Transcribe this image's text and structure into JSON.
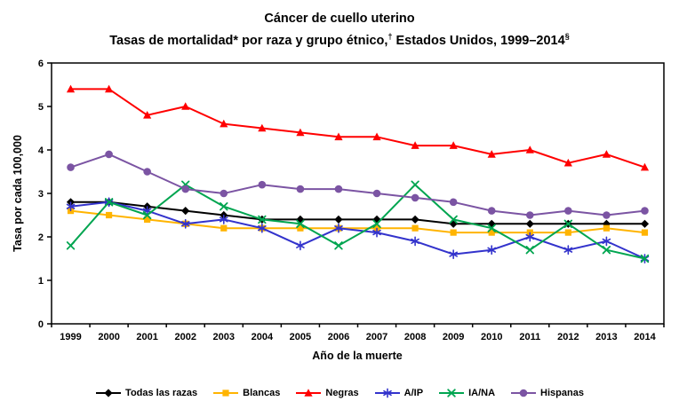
{
  "title": {
    "line1": "Cáncer de cuello uterino",
    "line2_part1": "Tasas de mortalidad* por raza y grupo étnico,",
    "line2_sup1": "†",
    "line2_part2": " Estados Unidos, 1999–2014",
    "line2_sup2": "§"
  },
  "chart_data": {
    "type": "line",
    "x": [
      1999,
      2000,
      2001,
      2002,
      2003,
      2004,
      2005,
      2006,
      2007,
      2008,
      2009,
      2010,
      2011,
      2012,
      2013,
      2014
    ],
    "xlabel": "Año de la muerte",
    "ylabel": "Tasa por cada 100,000",
    "ylim": [
      0,
      6
    ],
    "ytick_interval": 1,
    "grid": false,
    "legend_position": "bottom",
    "series": [
      {
        "name": "Todas las razas",
        "color": "#000000",
        "marker": "diamond",
        "values": [
          2.8,
          2.8,
          2.7,
          2.6,
          2.5,
          2.4,
          2.4,
          2.4,
          2.4,
          2.4,
          2.3,
          2.3,
          2.3,
          2.3,
          2.3,
          2.3
        ]
      },
      {
        "name": "Blancas",
        "color": "#FFB400",
        "marker": "square",
        "values": [
          2.6,
          2.5,
          2.4,
          2.3,
          2.2,
          2.2,
          2.2,
          2.2,
          2.2,
          2.2,
          2.1,
          2.1,
          2.1,
          2.1,
          2.2,
          2.1
        ]
      },
      {
        "name": "Negras",
        "color": "#FF0000",
        "marker": "triangle",
        "values": [
          5.4,
          5.4,
          4.8,
          5.0,
          4.6,
          4.5,
          4.4,
          4.3,
          4.3,
          4.1,
          4.1,
          3.9,
          4.0,
          3.7,
          3.9,
          3.6
        ]
      },
      {
        "name": "A/IP",
        "color": "#3333CC",
        "marker": "asterisk",
        "values": [
          2.7,
          2.8,
          2.6,
          2.3,
          2.4,
          2.2,
          1.8,
          2.2,
          2.1,
          1.9,
          1.6,
          1.7,
          2.0,
          1.7,
          1.9,
          1.5
        ]
      },
      {
        "name": "IA/NA",
        "color": "#00A550",
        "marker": "x",
        "values": [
          1.8,
          2.8,
          2.5,
          3.2,
          2.7,
          2.4,
          2.3,
          1.8,
          2.3,
          3.2,
          2.4,
          2.2,
          1.7,
          2.3,
          1.7,
          1.5
        ]
      },
      {
        "name": "Hispanas",
        "color": "#7B54A3",
        "marker": "circle",
        "values": [
          3.6,
          3.9,
          3.5,
          3.1,
          3.0,
          3.2,
          3.1,
          3.1,
          3.0,
          2.9,
          2.8,
          2.6,
          2.5,
          2.6,
          2.5,
          2.6
        ]
      }
    ]
  }
}
